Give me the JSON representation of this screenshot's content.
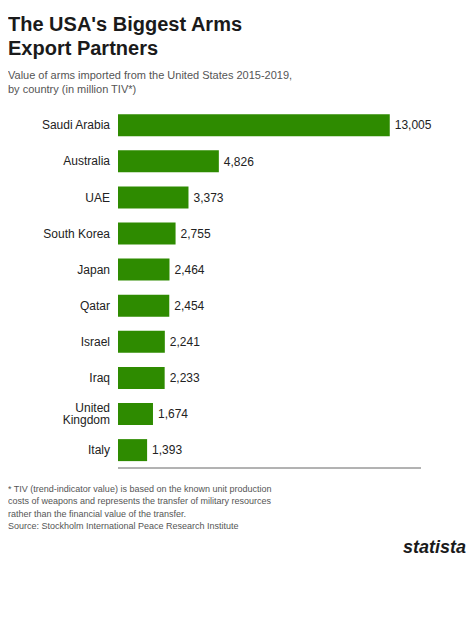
{
  "chart_data": {
    "type": "bar",
    "orientation": "horizontal",
    "title": "The USA's Biggest Arms\nExport Partners",
    "subtitle": "Value of arms imported from the United States 2015-2019,\nby country (in million TIV*)",
    "footnote": "* TIV (trend-indicator value) is based on the known unit production\ncosts of weapons and represents the transfer of military resources\nrather than the financial value of the transfer.\nSource: Stockholm International Peace Research Institute",
    "annotations": [
      "statista"
    ],
    "categories": [
      "Saudi Arabia",
      "Australia",
      "UAE",
      "South Korea",
      "Japan",
      "Qatar",
      "Israel",
      "Iraq",
      "United Kingdom",
      "Italy"
    ],
    "values": [
      13005,
      4826,
      3373,
      2755,
      2464,
      2454,
      2241,
      2233,
      1674,
      1393
    ],
    "value_labels": [
      "13,005",
      "4,826",
      "3,373",
      "2,755",
      "2,464",
      "2,454",
      "2,241",
      "2,233",
      "1,674",
      "1,393"
    ],
    "color": "#2e8b00",
    "xlim": [
      0,
      14500
    ],
    "grid": false,
    "data_labels": true,
    "tick_labels": "y"
  }
}
